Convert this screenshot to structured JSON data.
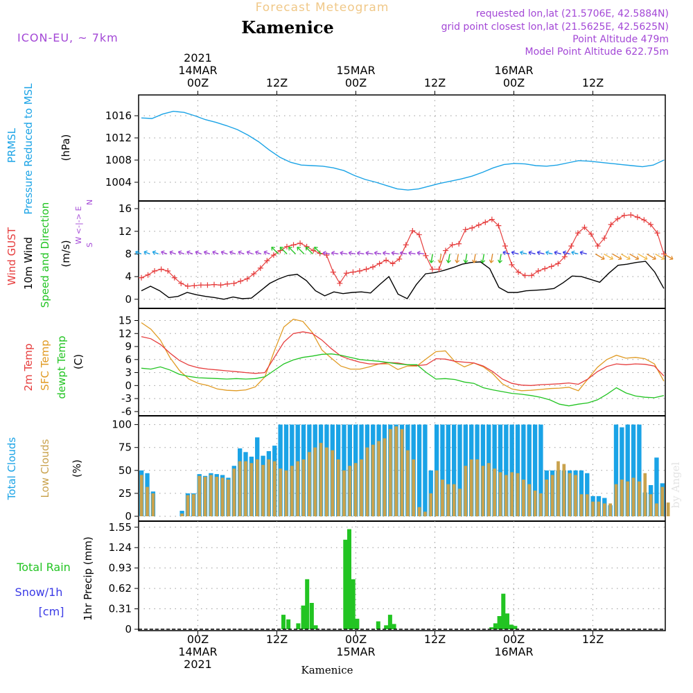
{
  "header": {
    "top_title": "Forecast Meteogram",
    "place": "Kamenice",
    "model": "ICON-EU, ~ 7km",
    "requested": "requested lon,lat (21.5706E, 42.5884N)",
    "gridpoint": "grid point closest lon,lat (21.5625E, 42.5625N)",
    "altitude": "Point Altitude 479m",
    "model_altitude": "Model Point Altitude 622.75m",
    "footer_place": "Kamenice",
    "watermark": "by Angel"
  },
  "colors": {
    "pressure": "#1aa3e6",
    "gust": "#e63c3c",
    "wind": "#000000",
    "temp2m": "#e63c3c",
    "sfc": "#e09a22",
    "dewpt": "#22c422",
    "total_clouds": "#1aa3e6",
    "low_clouds": "#c9a24d",
    "rain": "#22c422",
    "snow": "#3a3ae6",
    "label_purple": "#a347d6",
    "title_orange": "#f0c888"
  },
  "time_axis": {
    "top": [
      {
        "i": 9,
        "lines": [
          "2021",
          "14MAR",
          "00Z"
        ]
      },
      {
        "i": 21,
        "lines": [
          "12Z"
        ]
      },
      {
        "i": 33,
        "lines": [
          "15MAR",
          "00Z"
        ]
      },
      {
        "i": 45,
        "lines": [
          "12Z"
        ]
      },
      {
        "i": 57,
        "lines": [
          "16MAR",
          "00Z"
        ]
      },
      {
        "i": 69,
        "lines": [
          "12Z"
        ]
      }
    ],
    "bottom": [
      {
        "i": 9,
        "lines": [
          "00Z",
          "14MAR",
          "2021"
        ]
      },
      {
        "i": 21,
        "lines": [
          "12Z"
        ]
      },
      {
        "i": 33,
        "lines": [
          "00Z",
          "15MAR"
        ]
      },
      {
        "i": 45,
        "lines": [
          "12Z"
        ]
      },
      {
        "i": 57,
        "lines": [
          "00Z",
          "16MAR"
        ]
      },
      {
        "i": 69,
        "lines": [
          "12Z"
        ]
      }
    ]
  },
  "chart_data": [
    {
      "type": "line",
      "panel": "pressure",
      "ylabel_lines": [
        "PRMSL",
        "Pressure Reduced to MSL",
        "(hPa)"
      ],
      "ylim": [
        1001.5,
        1018.5
      ],
      "yticks": [
        1004,
        1008,
        1012,
        1016
      ],
      "series": [
        {
          "key": "pressure",
          "values": [
            1015.6,
            1015.5,
            1016.3,
            1016.8,
            1016.6,
            1016.0,
            1015.3,
            1014.8,
            1014.2,
            1013.5,
            1012.5,
            1011.3,
            1009.8,
            1008.5,
            1007.6,
            1007.1,
            1007.0,
            1006.9,
            1006.6,
            1006.1,
            1005.2,
            1004.5,
            1004.0,
            1003.4,
            1002.8,
            1002.6,
            1002.8,
            1003.3,
            1003.8,
            1004.2,
            1004.6,
            1005.1,
            1005.8,
            1006.6,
            1007.2,
            1007.4,
            1007.3,
            1007.0,
            1006.9,
            1007.1,
            1007.5,
            1007.9,
            1007.8,
            1007.6,
            1007.4,
            1007.2,
            1007.0,
            1006.8,
            1007.1,
            1008.0
          ]
        }
      ]
    },
    {
      "type": "line",
      "panel": "wind",
      "ylabel_lines": [
        "Wind GUST",
        "10m Wind",
        "Speed and Direction",
        "(m/s)"
      ],
      "ylim": [
        -1,
        16.5
      ],
      "yticks": [
        0,
        4,
        8,
        12,
        16
      ],
      "series": [
        {
          "key": "gust",
          "name": "Wind GUST",
          "values": [
            3.8,
            4.3,
            5.0,
            5.3,
            5.0,
            3.8,
            2.8,
            2.3,
            2.4,
            2.5,
            2.5,
            2.6,
            2.5,
            2.7,
            2.8,
            3.2,
            3.6,
            4.5,
            5.5,
            6.8,
            7.8,
            8.6,
            9.3,
            9.6,
            9.9,
            9.3,
            8.6,
            8.1,
            7.8,
            4.8,
            2.8,
            4.6,
            4.8,
            5.0,
            5.3,
            5.7,
            6.3,
            6.9,
            6.3,
            7.1,
            9.6,
            12.1,
            11.4,
            7.7,
            5.3,
            5.3,
            8.6,
            9.6,
            9.8,
            12.3,
            12.6,
            13.1,
            13.6,
            14.1,
            13.0,
            9.4,
            6.1,
            4.8,
            4.2,
            4.2,
            5.0,
            5.4,
            5.8,
            6.3,
            7.5,
            9.4,
            11.7,
            12.7,
            11.5,
            9.4,
            10.8,
            13.2,
            14.2,
            14.8,
            14.9,
            14.5,
            14.0,
            13.2,
            11.7,
            8.0
          ]
        },
        {
          "key": "wind",
          "name": "10m Wind",
          "values": [
            1.5,
            2.3,
            1.5,
            0.3,
            0.5,
            1.2,
            0.8,
            0.5,
            0.3,
            0.0,
            0.4,
            0.1,
            0.2,
            1.5,
            2.8,
            3.6,
            4.2,
            4.4,
            3.3,
            1.5,
            0.6,
            1.3,
            1.0,
            1.2,
            1.3,
            1.1,
            2.6,
            4.0,
            0.9,
            0.1,
            2.6,
            4.5,
            4.7,
            5.1,
            5.6,
            6.2,
            6.5,
            6.6,
            5.4,
            2.1,
            1.2,
            1.2,
            1.5,
            1.6,
            1.7,
            1.9,
            2.9,
            4.1,
            4.0,
            3.5,
            3.0,
            4.6,
            6.0,
            6.2,
            6.5,
            6.7,
            4.8,
            1.9
          ]
        }
      ],
      "arrows_note": "10m wind direction arrows plotted near y=8"
    },
    {
      "type": "line",
      "panel": "temperature",
      "ylabel_lines": [
        "2m Temp",
        "SFC Temp",
        "dewpt Temp",
        "(C)"
      ],
      "ylim": [
        -6.5,
        16.2
      ],
      "yticks": [
        -6,
        -3,
        0,
        3,
        6,
        9,
        12,
        15
      ],
      "series": [
        {
          "key": "temp2m",
          "name": "2m Temp",
          "values": [
            11.3,
            10.8,
            9.5,
            7.5,
            5.8,
            4.7,
            4.1,
            3.8,
            3.6,
            3.4,
            3.2,
            3.0,
            2.8,
            3.0,
            6.5,
            10.0,
            12.0,
            12.4,
            12.0,
            10.5,
            8.5,
            6.8,
            6.0,
            5.4,
            5.0,
            5.0,
            5.3,
            5.2,
            4.8,
            4.6,
            4.8,
            6.2,
            6.1,
            5.6,
            5.4,
            5.2,
            4.5,
            3.2,
            1.5,
            0.5,
            0.1,
            0.0,
            0.2,
            0.3,
            0.4,
            0.6,
            0.3,
            1.5,
            3.2,
            4.4,
            5.0,
            4.8,
            5.0,
            4.9,
            4.5,
            2.2
          ]
        },
        {
          "key": "sfc",
          "name": "SFC Temp",
          "values": [
            14.5,
            13.0,
            10.5,
            6.5,
            3.5,
            1.5,
            0.5,
            0.0,
            -0.8,
            -1.1,
            -1.2,
            -1.0,
            -0.3,
            2.0,
            8.0,
            13.5,
            15.3,
            14.8,
            12.2,
            8.2,
            6.3,
            4.5,
            3.8,
            3.8,
            4.3,
            5.0,
            5.0,
            3.7,
            4.5,
            4.5,
            6.2,
            7.8,
            8.0,
            5.5,
            4.3,
            5.2,
            4.3,
            2.7,
            0.4,
            -0.8,
            -1.2,
            -1.1,
            -0.9,
            -0.7,
            -0.6,
            -0.4,
            -1.2,
            1.5,
            4.2,
            6.0,
            7.0,
            6.3,
            6.5,
            6.2,
            5.0,
            1.0
          ]
        },
        {
          "key": "dewpt",
          "name": "dewpt Temp",
          "values": [
            4.0,
            3.8,
            4.3,
            3.6,
            2.6,
            2.1,
            1.8,
            1.7,
            1.6,
            1.5,
            1.6,
            1.5,
            1.6,
            2.0,
            3.5,
            5.0,
            5.9,
            6.5,
            6.8,
            7.2,
            7.3,
            7.0,
            6.5,
            6.0,
            5.8,
            5.6,
            5.3,
            5.0,
            4.8,
            4.8,
            3.0,
            1.5,
            1.6,
            1.4,
            0.8,
            0.5,
            -0.5,
            -1.0,
            -1.4,
            -1.8,
            -2.0,
            -2.3,
            -2.7,
            -3.3,
            -4.3,
            -4.7,
            -4.3,
            -4.0,
            -3.3,
            -2.0,
            -0.5,
            -1.7,
            -2.4,
            -2.7,
            -2.8,
            -2.3
          ]
        }
      ]
    },
    {
      "type": "bar",
      "panel": "clouds",
      "ylabel_lines": [
        "Total Clouds",
        "Low Clouds",
        "(%)"
      ],
      "ylim": [
        0,
        105
      ],
      "yticks": [
        0,
        25,
        50,
        75,
        100
      ],
      "series": [
        {
          "key": "total_clouds",
          "name": "Total Clouds",
          "values": [
            50,
            47,
            27,
            0,
            0,
            0,
            0,
            6,
            25,
            25,
            46,
            44,
            47,
            46,
            45,
            42,
            55,
            74,
            70,
            65,
            86,
            66,
            71,
            77,
            100,
            100,
            100,
            100,
            100,
            100,
            100,
            100,
            100,
            100,
            100,
            100,
            100,
            100,
            100,
            100,
            100,
            100,
            100,
            100,
            100,
            100,
            100,
            100,
            100,
            100,
            50,
            100,
            100,
            100,
            100,
            100,
            100,
            100,
            100,
            100,
            100,
            100,
            100,
            100,
            100,
            100,
            100,
            100,
            100,
            100,
            50,
            50,
            50,
            50,
            50,
            50,
            50,
            47,
            22,
            22,
            20,
            12,
            100,
            97,
            100,
            100,
            100,
            26,
            34,
            64,
            36
          ]
        },
        {
          "key": "low_clouds",
          "name": "Low Clouds",
          "values": [
            45,
            32,
            25,
            0,
            0,
            0,
            0,
            3,
            23,
            24,
            44,
            43,
            45,
            43,
            42,
            40,
            52,
            60,
            60,
            58,
            62,
            56,
            62,
            60,
            52,
            50,
            55,
            60,
            62,
            70,
            75,
            80,
            75,
            72,
            62,
            50,
            55,
            58,
            62,
            75,
            78,
            82,
            85,
            95,
            98,
            95,
            72,
            62,
            10,
            5,
            25,
            50,
            40,
            35,
            35,
            30,
            55,
            62,
            62,
            55,
            58,
            52,
            48,
            45,
            48,
            47,
            40,
            35,
            28,
            25,
            40,
            45,
            60,
            57,
            47,
            45,
            24,
            24,
            16,
            16,
            14,
            14,
            35,
            40,
            38,
            42,
            38,
            47,
            24,
            14,
            32,
            15
          ]
        }
      ]
    },
    {
      "type": "bar",
      "panel": "precip",
      "ylabel_lines": [
        "1hr Precip (mm)"
      ],
      "left_labels": [
        "Total  Rain",
        "Snow/1h",
        "[cm]"
      ],
      "ylim": [
        0,
        1.6
      ],
      "yticks": [
        0,
        0.31,
        0.62,
        0.93,
        1.24,
        1.55
      ],
      "series": [
        {
          "key": "rain",
          "name": "Total Rain",
          "bars": [
            [
              22.0,
              0.22
            ],
            [
              22.75,
              0.15
            ],
            [
              24.25,
              0.09
            ],
            [
              25.0,
              0.36
            ],
            [
              25.6,
              0.76
            ],
            [
              26.3,
              0.4
            ],
            [
              26.9,
              0.06
            ],
            [
              31.4,
              1.36
            ],
            [
              32.0,
              1.52
            ],
            [
              32.6,
              0.76
            ],
            [
              33.2,
              0.16
            ],
            [
              36.4,
              0.12
            ],
            [
              37.6,
              0.06
            ],
            [
              38.2,
              0.22
            ],
            [
              38.8,
              0.08
            ],
            [
              53.6,
              0.03
            ],
            [
              54.2,
              0.09
            ],
            [
              54.8,
              0.2
            ],
            [
              55.4,
              0.54
            ],
            [
              56.0,
              0.24
            ],
            [
              56.6,
              0.07
            ],
            [
              57.2,
              0.05
            ]
          ]
        }
      ]
    }
  ]
}
